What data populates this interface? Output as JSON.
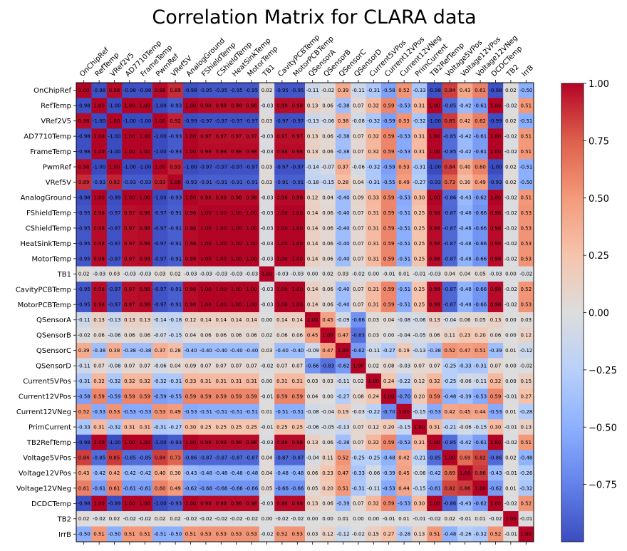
{
  "chart_data": {
    "type": "heatmap",
    "title": "Correlation Matrix for CLARA data",
    "labels": [
      "OnChipRef",
      "RefTemp",
      "VRef2V5",
      "AD7710Temp",
      "FrameTemp",
      "PwmRef",
      "VRef5V",
      "AnalogGround",
      "FShieldTemp",
      "CShieldTemp",
      "HeatSinkTemp",
      "MotorTemp",
      "TB1",
      "CavityPCBTemp",
      "MotorPCBTemp",
      "QSensorA",
      "QSensorB",
      "QSensorC",
      "QSensorD",
      "Current5VPos",
      "Current12VPos",
      "Current12VNeg",
      "PrimCurrent",
      "TB2RefTemp",
      "Voltage5VPos",
      "Voltage12VPos",
      "Voltage12VNeg",
      "DCDCTemp",
      "TB2",
      "IrrB"
    ],
    "matrix": [
      [
        1.0,
        -0.98,
        0.98,
        -0.98,
        -0.98,
        0.98,
        0.89,
        -0.98,
        -0.95,
        -0.95,
        -0.95,
        -0.95,
        0.02,
        -0.95,
        -0.95,
        -0.11,
        -0.02,
        0.39,
        -0.11,
        -0.31,
        -0.58,
        0.52,
        -0.33,
        -0.98,
        0.84,
        0.43,
        0.61,
        -0.98,
        0.02,
        -0.5
      ],
      [
        -0.98,
        1.0,
        -1.0,
        1.0,
        1.0,
        -1.0,
        -0.93,
        1.0,
        0.98,
        0.98,
        0.98,
        0.98,
        -0.03,
        0.98,
        0.98,
        0.13,
        0.06,
        -0.38,
        0.07,
        0.32,
        0.59,
        -0.53,
        0.31,
        1.0,
        -0.85,
        -0.42,
        -0.61,
        1.0,
        -0.02,
        0.51
      ],
      [
        0.98,
        -1.0,
        1.0,
        -1.0,
        -1.0,
        1.0,
        0.92,
        -0.99,
        -0.97,
        -0.97,
        -0.97,
        -0.97,
        0.03,
        -0.97,
        -0.97,
        -0.13,
        -0.06,
        0.38,
        -0.08,
        -0.32,
        -0.59,
        0.53,
        -0.32,
        -1.0,
        0.85,
        0.42,
        0.62,
        -0.99,
        0.02,
        -0.51
      ],
      [
        -0.98,
        1.0,
        -1.0,
        1.0,
        1.0,
        -1.0,
        -0.93,
        1.0,
        0.97,
        0.97,
        0.97,
        0.97,
        -0.03,
        0.97,
        0.97,
        0.13,
        0.06,
        -0.38,
        0.07,
        0.32,
        0.59,
        -0.53,
        0.31,
        1.0,
        -0.85,
        -0.42,
        -0.61,
        1.0,
        -0.02,
        0.51
      ],
      [
        -0.98,
        1.0,
        -1.0,
        1.0,
        1.0,
        -1.0,
        -0.93,
        1.0,
        0.98,
        0.98,
        0.98,
        0.98,
        -0.03,
        0.98,
        0.98,
        0.13,
        0.06,
        -0.38,
        0.07,
        0.32,
        0.59,
        -0.53,
        0.31,
        1.0,
        -0.85,
        -0.42,
        -0.61,
        1.0,
        -0.02,
        0.51
      ],
      [
        0.98,
        -1.0,
        1.0,
        -1.0,
        -1.0,
        1.0,
        0.93,
        -1.0,
        -0.97,
        -0.97,
        -0.97,
        -0.97,
        0.03,
        -0.97,
        -0.97,
        -0.14,
        -0.07,
        0.37,
        -0.06,
        -0.32,
        -0.59,
        0.53,
        -0.31,
        -1.0,
        0.84,
        0.4,
        0.6,
        -1.0,
        0.02,
        -0.51
      ],
      [
        0.89,
        -0.93,
        0.92,
        -0.93,
        -0.93,
        0.93,
        1.0,
        -0.93,
        -0.91,
        -0.91,
        -0.91,
        -0.91,
        0.03,
        -0.91,
        -0.91,
        -0.18,
        -0.15,
        0.28,
        0.04,
        -0.31,
        -0.55,
        0.49,
        -0.27,
        -0.93,
        0.73,
        0.3,
        0.49,
        -0.93,
        0.02,
        -0.5
      ],
      [
        -0.98,
        1.0,
        -0.99,
        1.0,
        1.0,
        -1.0,
        -0.93,
        1.0,
        0.98,
        0.98,
        0.98,
        0.98,
        -0.03,
        0.98,
        0.98,
        0.12,
        0.04,
        -0.4,
        0.09,
        0.33,
        0.59,
        -0.53,
        0.3,
        1.0,
        -0.86,
        -0.43,
        -0.62,
        1.0,
        -0.02,
        0.51
      ],
      [
        -0.95,
        0.98,
        -0.97,
        0.97,
        0.98,
        -0.97,
        -0.91,
        0.98,
        1.0,
        1.0,
        1.0,
        1.0,
        -0.03,
        1.0,
        1.0,
        0.14,
        0.06,
        -0.4,
        0.07,
        0.31,
        0.59,
        -0.51,
        0.25,
        0.98,
        -0.87,
        -0.48,
        -0.66,
        0.98,
        -0.02,
        0.53
      ],
      [
        -0.95,
        0.98,
        -0.97,
        0.97,
        0.98,
        -0.97,
        -0.91,
        0.98,
        1.0,
        1.0,
        1.0,
        1.0,
        -0.03,
        1.0,
        1.0,
        0.14,
        0.06,
        -0.4,
        0.07,
        0.31,
        0.59,
        -0.51,
        0.25,
        0.98,
        -0.87,
        -0.48,
        -0.66,
        0.98,
        -0.02,
        0.53
      ],
      [
        -0.95,
        0.98,
        -0.97,
        0.97,
        0.98,
        -0.97,
        -0.91,
        0.98,
        1.0,
        1.0,
        1.0,
        1.0,
        -0.03,
        1.0,
        1.0,
        0.14,
        0.06,
        -0.4,
        0.07,
        0.31,
        0.59,
        -0.51,
        0.25,
        0.98,
        -0.87,
        -0.48,
        -0.66,
        0.98,
        -0.02,
        0.53
      ],
      [
        -0.95,
        0.98,
        -0.97,
        0.97,
        0.98,
        -0.97,
        -0.91,
        0.98,
        1.0,
        1.0,
        1.0,
        1.0,
        -0.03,
        1.0,
        1.0,
        0.14,
        0.06,
        -0.4,
        0.07,
        0.31,
        0.59,
        -0.51,
        0.25,
        0.98,
        -0.87,
        -0.48,
        -0.66,
        0.98,
        -0.02,
        0.53
      ],
      [
        0.02,
        -0.03,
        0.03,
        -0.03,
        -0.03,
        0.03,
        0.02,
        -0.03,
        -0.03,
        -0.03,
        -0.03,
        -0.03,
        1.0,
        -0.03,
        -0.03,
        0.0,
        0.02,
        0.03,
        -0.02,
        0.0,
        -0.01,
        0.01,
        -0.01,
        -0.03,
        0.04,
        0.04,
        0.05,
        -0.03,
        0.0,
        -0.02
      ],
      [
        -0.95,
        0.98,
        -0.97,
        0.97,
        0.98,
        -0.97,
        -0.91,
        0.98,
        1.0,
        1.0,
        1.0,
        1.0,
        -0.03,
        1.0,
        1.0,
        0.14,
        0.06,
        -0.4,
        0.07,
        0.31,
        0.59,
        -0.51,
        0.25,
        0.98,
        -0.87,
        -0.48,
        -0.66,
        0.98,
        -0.02,
        0.52
      ],
      [
        -0.95,
        0.98,
        -0.97,
        0.97,
        0.98,
        -0.97,
        -0.91,
        0.98,
        1.0,
        1.0,
        1.0,
        1.0,
        -0.03,
        1.0,
        1.0,
        0.14,
        0.06,
        -0.4,
        0.07,
        0.31,
        0.59,
        -0.51,
        0.25,
        0.98,
        -0.87,
        -0.48,
        -0.66,
        0.98,
        -0.02,
        0.53
      ],
      [
        -0.11,
        0.13,
        -0.13,
        0.13,
        0.13,
        -0.14,
        -0.18,
        0.12,
        0.14,
        0.14,
        0.14,
        0.14,
        0.0,
        0.14,
        0.14,
        1.0,
        0.45,
        -0.09,
        -0.66,
        0.03,
        0.04,
        -0.08,
        -0.06,
        0.13,
        -0.04,
        0.06,
        0.05,
        0.13,
        0.0,
        0.03
      ],
      [
        -0.02,
        0.06,
        -0.06,
        0.06,
        0.06,
        -0.07,
        -0.15,
        0.04,
        0.06,
        0.06,
        0.06,
        0.06,
        0.02,
        0.06,
        0.06,
        0.45,
        1.0,
        0.47,
        -0.83,
        0.03,
        -0.0,
        -0.04,
        -0.05,
        0.06,
        0.11,
        0.23,
        0.2,
        0.06,
        0.0,
        0.12
      ],
      [
        0.39,
        -0.38,
        0.38,
        -0.38,
        -0.38,
        0.37,
        0.28,
        -0.4,
        -0.4,
        -0.4,
        -0.4,
        -0.4,
        0.03,
        -0.4,
        -0.4,
        -0.09,
        0.47,
        1.0,
        -0.62,
        -0.11,
        -0.27,
        0.19,
        -0.13,
        -0.38,
        0.52,
        0.47,
        0.51,
        -0.39,
        0.01,
        -0.12
      ],
      [
        -0.11,
        0.07,
        -0.08,
        0.07,
        0.07,
        -0.06,
        0.04,
        0.09,
        0.07,
        0.07,
        0.07,
        0.07,
        -0.02,
        0.07,
        0.07,
        -0.66,
        -0.83,
        -0.62,
        1.0,
        0.02,
        0.08,
        -0.03,
        0.07,
        0.07,
        -0.25,
        -0.33,
        -0.31,
        0.07,
        -0.0,
        -0.02
      ],
      [
        -0.31,
        0.32,
        -0.32,
        0.32,
        0.32,
        -0.32,
        -0.31,
        0.33,
        0.31,
        0.31,
        0.31,
        0.31,
        0.0,
        0.31,
        0.31,
        0.03,
        0.03,
        -0.11,
        0.02,
        1.0,
        0.24,
        -0.22,
        0.12,
        0.32,
        -0.25,
        -0.06,
        -0.11,
        0.32,
        -0.0,
        0.15
      ],
      [
        -0.58,
        0.59,
        -0.59,
        0.59,
        0.59,
        -0.59,
        -0.55,
        0.59,
        0.59,
        0.59,
        0.59,
        0.59,
        -0.01,
        0.59,
        0.59,
        0.04,
        -0.0,
        -0.27,
        0.08,
        0.24,
        1.0,
        -0.7,
        0.2,
        0.59,
        -0.48,
        -0.39,
        -0.53,
        0.59,
        -0.01,
        0.27
      ],
      [
        0.52,
        -0.53,
        0.53,
        -0.53,
        -0.53,
        0.53,
        0.49,
        -0.53,
        -0.51,
        -0.51,
        -0.51,
        -0.51,
        0.01,
        -0.51,
        -0.51,
        -0.08,
        -0.04,
        0.19,
        -0.03,
        -0.22,
        -0.7,
        1.0,
        -0.15,
        -0.53,
        0.42,
        0.45,
        0.44,
        -0.53,
        0.01,
        -0.28
      ],
      [
        -0.33,
        0.31,
        -0.32,
        0.31,
        0.31,
        -0.31,
        -0.27,
        0.3,
        0.25,
        0.25,
        0.25,
        0.25,
        -0.01,
        0.25,
        0.25,
        -0.06,
        -0.05,
        -0.13,
        0.07,
        0.12,
        0.2,
        -0.15,
        1.0,
        0.31,
        -0.21,
        -0.06,
        -0.15,
        0.3,
        -0.01,
        0.13
      ],
      [
        -0.98,
        1.0,
        -1.0,
        1.0,
        1.0,
        -1.0,
        -0.93,
        1.0,
        0.98,
        0.98,
        0.98,
        0.98,
        -0.03,
        0.98,
        0.98,
        0.13,
        0.06,
        -0.38,
        0.07,
        0.32,
        0.59,
        -0.53,
        0.31,
        1.0,
        -0.85,
        -0.42,
        -0.61,
        1.0,
        -0.02,
        0.51
      ],
      [
        0.84,
        -0.85,
        0.85,
        -0.85,
        -0.85,
        0.84,
        0.73,
        -0.86,
        -0.87,
        -0.87,
        -0.87,
        -0.87,
        0.04,
        -0.87,
        -0.87,
        -0.04,
        0.11,
        0.52,
        -0.25,
        -0.25,
        -0.48,
        0.42,
        -0.21,
        -0.85,
        1.0,
        0.69,
        0.82,
        -0.86,
        0.02,
        -0.48
      ],
      [
        0.43,
        -0.42,
        0.42,
        -0.42,
        -0.42,
        0.4,
        0.3,
        -0.43,
        -0.48,
        -0.48,
        -0.48,
        -0.48,
        0.04,
        -0.48,
        -0.48,
        0.06,
        0.23,
        0.47,
        -0.33,
        -0.06,
        -0.39,
        0.45,
        -0.06,
        -0.42,
        0.69,
        1.0,
        0.86,
        -0.43,
        -0.01,
        -0.26
      ],
      [
        0.61,
        -0.61,
        0.61,
        -0.61,
        -0.61,
        0.6,
        0.49,
        -0.62,
        -0.66,
        -0.66,
        -0.66,
        -0.66,
        0.05,
        -0.66,
        -0.66,
        0.05,
        0.2,
        0.51,
        -0.31,
        -0.11,
        -0.53,
        0.44,
        -0.15,
        -0.61,
        0.82,
        0.86,
        1.0,
        -0.62,
        0.01,
        -0.32
      ],
      [
        -0.98,
        1.0,
        -0.99,
        1.0,
        1.0,
        -1.0,
        -0.93,
        1.0,
        0.98,
        0.98,
        0.98,
        0.98,
        -0.03,
        0.98,
        0.98,
        0.13,
        0.06,
        -0.39,
        0.07,
        0.32,
        0.59,
        -0.53,
        0.3,
        1.0,
        -0.86,
        -0.43,
        -0.62,
        1.0,
        -0.02,
        0.52
      ],
      [
        0.02,
        -0.02,
        0.02,
        -0.02,
        -0.02,
        0.02,
        0.02,
        -0.02,
        -0.02,
        -0.02,
        -0.02,
        -0.02,
        0.0,
        -0.02,
        -0.02,
        0.0,
        0.0,
        0.01,
        -0.0,
        -0.0,
        -0.01,
        0.01,
        -0.01,
        -0.02,
        0.02,
        -0.01,
        0.01,
        -0.02,
        1.0,
        -0.01
      ],
      [
        -0.5,
        0.51,
        -0.5,
        0.51,
        0.51,
        -0.51,
        -0.5,
        0.51,
        0.53,
        0.53,
        0.53,
        0.53,
        -0.02,
        0.52,
        0.53,
        0.03,
        0.12,
        -0.12,
        -0.02,
        0.15,
        0.27,
        -0.28,
        0.13,
        0.51,
        -0.48,
        -0.26,
        -0.32,
        0.52,
        -0.01,
        1.0
      ]
    ],
    "vmin": -1,
    "vmax": 1,
    "colormap": "coolwarm",
    "colors": {
      "low": "#3b4cc0",
      "mid": "#dddddd",
      "high": "#b40426"
    },
    "colorbar_ticks": [
      "1.00",
      "0.75",
      "0.50",
      "0.25",
      "0.00",
      "−0.25",
      "−0.50",
      "−0.75"
    ],
    "colorbar_tick_values": [
      1.0,
      0.75,
      0.5,
      0.25,
      0.0,
      -0.25,
      -0.5,
      -0.75
    ],
    "xlabel": "",
    "ylabel": "",
    "legend_position": "right"
  }
}
